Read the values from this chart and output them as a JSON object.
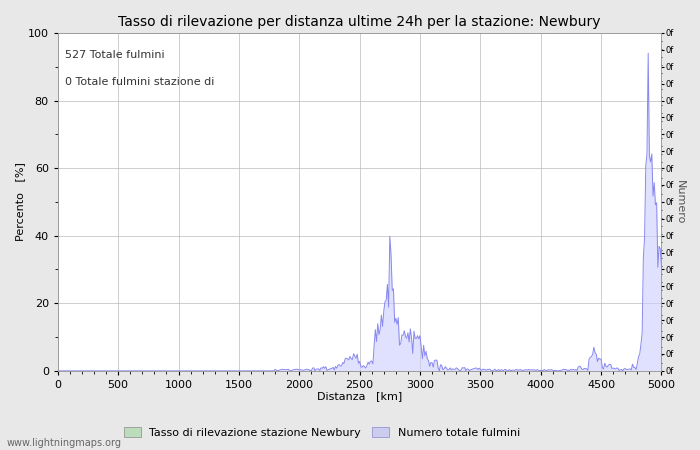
{
  "title": "Tasso di rilevazione per distanza ultime 24h per la stazione: Newbury",
  "xlabel": "Distanza   [km]",
  "ylabel_left": "Percento   [%]",
  "ylabel_right": "Numero",
  "annotation_line1": "527 Totale fulmini",
  "annotation_line2": "0 Totale fulmini stazione di",
  "legend_label1": "Tasso di rilevazione stazione Newbury",
  "legend_label2": "Numero totale fulmini",
  "watermark": "www.lightningmaps.org",
  "xlim": [
    0,
    5000
  ],
  "ylim": [
    0,
    100
  ],
  "xticks": [
    0,
    500,
    1000,
    1500,
    2000,
    2500,
    3000,
    3500,
    4000,
    4500,
    5000
  ],
  "yticks_left": [
    0,
    20,
    40,
    60,
    80,
    100
  ],
  "line_color": "#8888ee",
  "fill_color": "#ccccff",
  "grid_color": "#bbbbbb",
  "bg_color": "#e8e8e8",
  "plot_bg_color": "#ffffff",
  "title_fontsize": 10,
  "label_fontsize": 8,
  "tick_fontsize": 8,
  "annotation_fontsize": 8,
  "watermark_fontsize": 7,
  "legend_fontsize": 8
}
